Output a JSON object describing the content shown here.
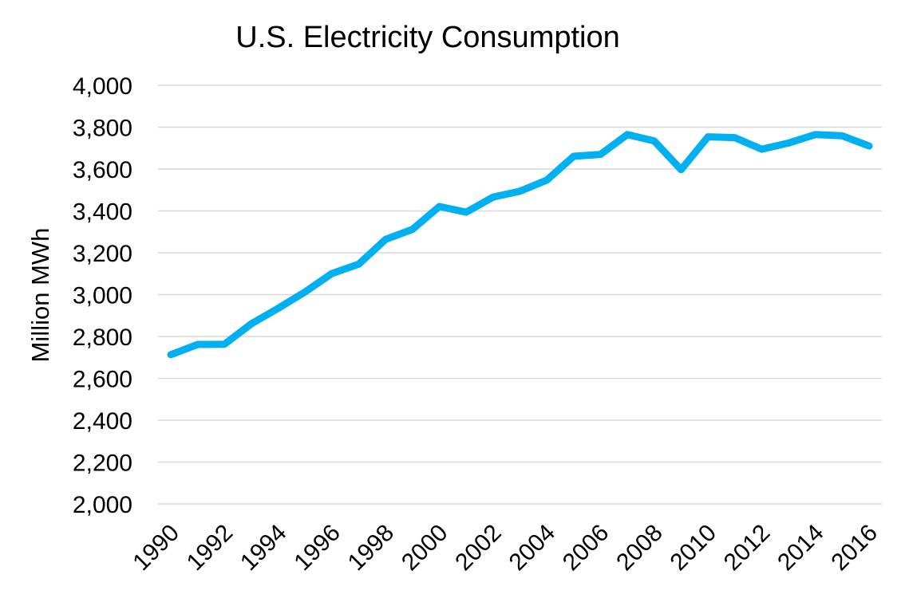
{
  "chart_data": {
    "type": "line",
    "title": "U.S. Electricity Consumption",
    "xlabel": "",
    "ylabel": "Million MWh",
    "x": [
      1990,
      1991,
      1992,
      1993,
      1994,
      1995,
      1996,
      1997,
      1998,
      1999,
      2000,
      2001,
      2002,
      2003,
      2004,
      2005,
      2006,
      2007,
      2008,
      2009,
      2010,
      2011,
      2012,
      2013,
      2014,
      2015,
      2016
    ],
    "series": [
      {
        "values": [
          2713,
          2762,
          2763,
          2861,
          2935,
          3013,
          3101,
          3146,
          3264,
          3312,
          3421,
          3394,
          3466,
          3494,
          3547,
          3661,
          3670,
          3765,
          3734,
          3597,
          3754,
          3750,
          3695,
          3724,
          3765,
          3759,
          3710
        ],
        "color": "#00B0F0"
      }
    ],
    "ylim": [
      2000,
      4000
    ],
    "y_ticks": [
      "2,000",
      "2,200",
      "2,400",
      "2,600",
      "2,800",
      "3,000",
      "3,200",
      "3,400",
      "3,600",
      "3,800",
      "4,000"
    ],
    "x_tick_labels": [
      "1990",
      "1992",
      "1994",
      "1996",
      "1998",
      "2000",
      "2002",
      "2004",
      "2006",
      "2008",
      "2010",
      "2012",
      "2014",
      "2016"
    ],
    "grid": true,
    "grid_color": "#d9d9d9",
    "legend": "none"
  }
}
